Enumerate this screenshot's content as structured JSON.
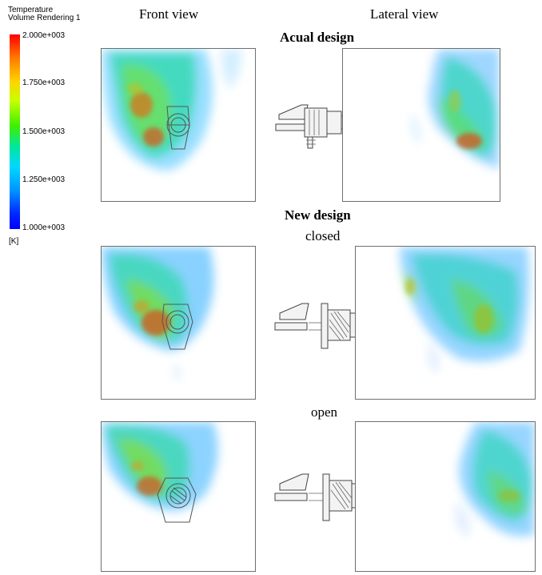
{
  "columns": {
    "front": "Front view",
    "lateral": "Lateral view"
  },
  "legend": {
    "title": "Temperature",
    "subtitle": "Volume Rendering 1",
    "ticks": [
      "2.000e+003",
      "1.750e+003",
      "1.500e+003",
      "1.250e+003",
      "1.000e+003"
    ],
    "unit": "[K]",
    "colors": [
      "#ff0000",
      "#ffd200",
      "#3cf000",
      "#00d8ff",
      "#0000ff"
    ]
  },
  "sections": {
    "actual": {
      "title": "Acual design"
    },
    "new": {
      "title": "New design",
      "closed": "closed",
      "open": "open"
    }
  }
}
